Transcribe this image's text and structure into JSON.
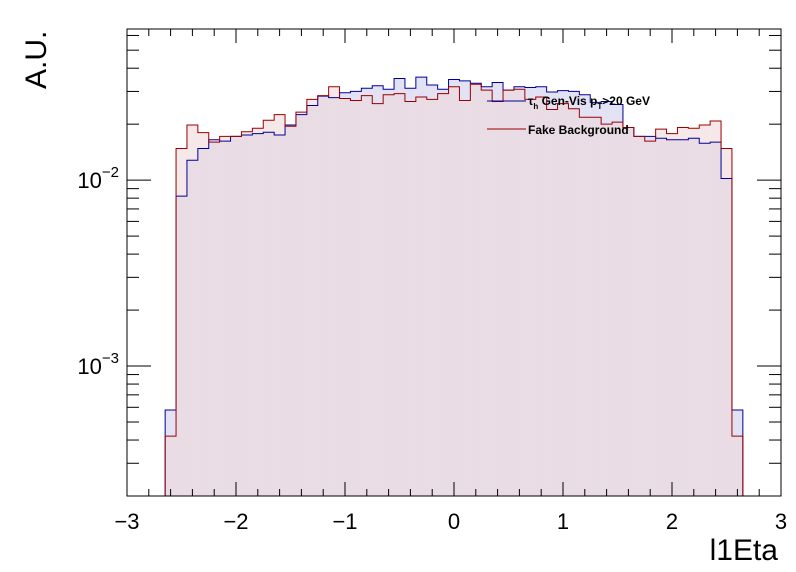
{
  "chart_data": {
    "type": "histogram",
    "title": "",
    "xlabel": "l1Eta",
    "ylabel": "A.U.",
    "xlim": [
      -3,
      3
    ],
    "ylim": [
      0.0002,
      0.065
    ],
    "yscale": "log",
    "grid": false,
    "legend_position": "top-right",
    "x_ticks": [
      -3,
      -2,
      -1,
      0,
      1,
      2,
      3
    ],
    "x_tick_labels": [
      "−3",
      "−2",
      "−1",
      "0",
      "1",
      "2",
      "3"
    ],
    "y_ticks": [
      0.01,
      0.001
    ],
    "bin_edges": [
      -2.65,
      -2.55,
      -2.45,
      -2.35,
      -2.25,
      -2.15,
      -2.05,
      -1.95,
      -1.85,
      -1.75,
      -1.65,
      -1.55,
      -1.45,
      -1.35,
      -1.25,
      -1.15,
      -1.05,
      -0.95,
      -0.85,
      -0.75,
      -0.65,
      -0.55,
      -0.45,
      -0.35,
      -0.25,
      -0.15,
      -0.05,
      0.05,
      0.15,
      0.25,
      0.35,
      0.45,
      0.55,
      0.65,
      0.75,
      0.85,
      0.95,
      1.05,
      1.15,
      1.25,
      1.35,
      1.45,
      1.55,
      1.65,
      1.75,
      1.85,
      1.95,
      2.05,
      2.15,
      2.25,
      2.35,
      2.45,
      2.55,
      2.65
    ],
    "series": [
      {
        "name": "τh Gen-Vis pT>20 GeV",
        "color": "#000099",
        "fill": "#d8d8f0",
        "values": [
          0.00058,
          0.0082,
          0.0128,
          0.0148,
          0.0165,
          0.0162,
          0.0172,
          0.0175,
          0.0178,
          0.0181,
          0.0175,
          0.0198,
          0.0225,
          0.0252,
          0.0283,
          0.0278,
          0.0295,
          0.03,
          0.0312,
          0.0322,
          0.0308,
          0.0352,
          0.0312,
          0.0358,
          0.0325,
          0.0308,
          0.0348,
          0.0342,
          0.0332,
          0.0318,
          0.0335,
          0.0305,
          0.0318,
          0.0315,
          0.0318,
          0.0298,
          0.0303,
          0.03,
          0.0288,
          0.0262,
          0.0265,
          0.0255,
          0.0192,
          0.0172,
          0.0172,
          0.0168,
          0.0165,
          0.0165,
          0.0168,
          0.0158,
          0.016,
          0.0102,
          0.00058
        ]
      },
      {
        "name": "Fake Background",
        "color": "#990000",
        "fill": "#f0d8d8",
        "values": [
          0.00042,
          0.0148,
          0.0198,
          0.018,
          0.016,
          0.0172,
          0.0172,
          0.0182,
          0.019,
          0.021,
          0.0225,
          0.0195,
          0.0232,
          0.0272,
          0.0285,
          0.0318,
          0.0275,
          0.0268,
          0.0285,
          0.0258,
          0.0288,
          0.0292,
          0.0265,
          0.028,
          0.0272,
          0.0292,
          0.0318,
          0.0268,
          0.0328,
          0.0305,
          0.0265,
          0.0305,
          0.0308,
          0.0272,
          0.028,
          0.024,
          0.0258,
          0.0242,
          0.0218,
          0.0218,
          0.02,
          0.0205,
          0.0192,
          0.0172,
          0.0162,
          0.0188,
          0.0178,
          0.0192,
          0.019,
          0.0198,
          0.0208,
          0.0148,
          0.00042
        ]
      }
    ],
    "legend": [
      {
        "label": "τh Gen-Vis pT>20 GeV",
        "color": "#000099"
      },
      {
        "label": "Fake Background",
        "color": "#990000"
      }
    ]
  }
}
